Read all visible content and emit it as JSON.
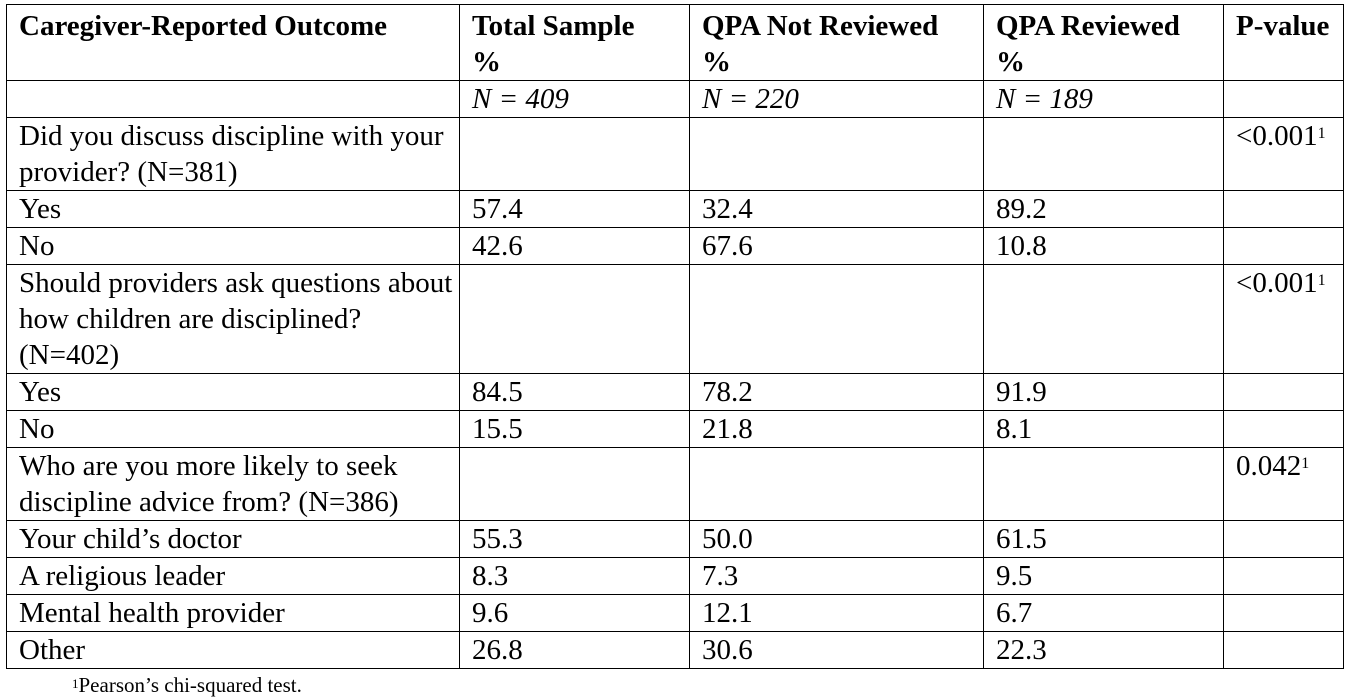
{
  "table": {
    "headers": [
      [
        "Caregiver-Reported Outcome"
      ],
      [
        "Total Sample",
        "%"
      ],
      [
        "QPA Not Reviewed",
        "%"
      ],
      [
        "QPA Reviewed",
        "%"
      ],
      [
        "P-value"
      ]
    ],
    "n_row": [
      "",
      "N = 409",
      "N = 220",
      "N = 189",
      ""
    ],
    "sections": [
      {
        "question": "Did you discuss discipline with your provider? (N=381)",
        "p_value": "<0.001",
        "p_sup": "1",
        "rows": [
          {
            "label": "Yes",
            "total": "57.4",
            "not_reviewed": "32.4",
            "reviewed": "89.2"
          },
          {
            "label": "No",
            "total": "42.6",
            "not_reviewed": "67.6",
            "reviewed": "10.8"
          }
        ]
      },
      {
        "question": "Should providers ask questions about how children are disciplined? (N=402)",
        "p_value": "<0.001",
        "p_sup": "1",
        "rows": [
          {
            "label": "Yes",
            "total": "84.5",
            "not_reviewed": "78.2",
            "reviewed": "91.9"
          },
          {
            "label": "No",
            "total": "15.5",
            "not_reviewed": "21.8",
            "reviewed": "8.1"
          }
        ]
      },
      {
        "question": "Who are you more likely to seek discipline advice from? (N=386)",
        "p_value": "0.042",
        "p_sup": "1",
        "rows": [
          {
            "label": "Your child’s doctor",
            "total": "55.3",
            "not_reviewed": "50.0",
            "reviewed": "61.5"
          },
          {
            "label": "A religious leader",
            "total": "8.3",
            "not_reviewed": "7.3",
            "reviewed": "9.5"
          },
          {
            "label": "Mental health provider",
            "total": "9.6",
            "not_reviewed": "12.1",
            "reviewed": "6.7"
          },
          {
            "label": "Other",
            "total": "26.8",
            "not_reviewed": "30.6",
            "reviewed": "22.3"
          }
        ]
      }
    ]
  },
  "footnote": {
    "sup": "1",
    "text": "Pearson’s chi-squared test."
  }
}
